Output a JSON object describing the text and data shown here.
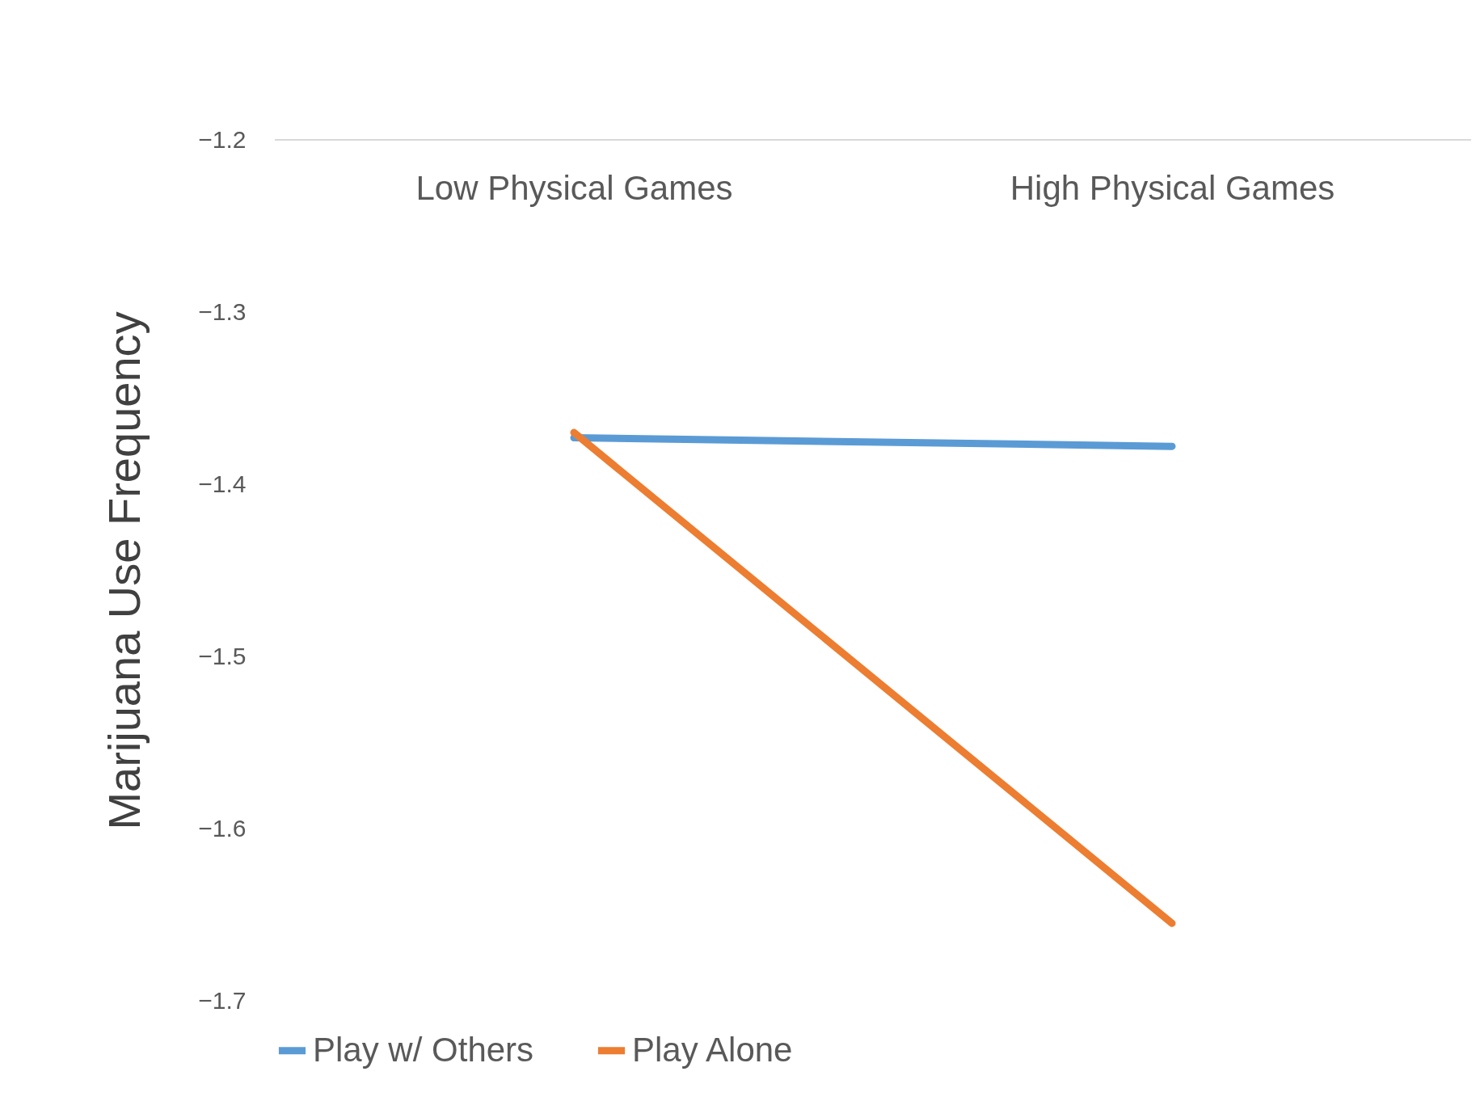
{
  "chart_data": {
    "type": "line",
    "ylabel": "Marijuana Use Frequency",
    "categories": [
      "Low Physical Games",
      "High Physical Games"
    ],
    "series": [
      {
        "name": "Play w/ Others",
        "color": "#5b9bd5",
        "values": [
          -1.373,
          -1.378
        ]
      },
      {
        "name": "Play Alone",
        "color": "#ed7d31",
        "values": [
          -1.37,
          -1.655
        ]
      }
    ],
    "ylim": [
      -1.7,
      -1.2
    ],
    "yticks": [
      -1.2,
      -1.3,
      -1.4,
      -1.5,
      -1.6,
      -1.7
    ],
    "legend": "bottom",
    "line_style": "solid",
    "marker": "none"
  }
}
